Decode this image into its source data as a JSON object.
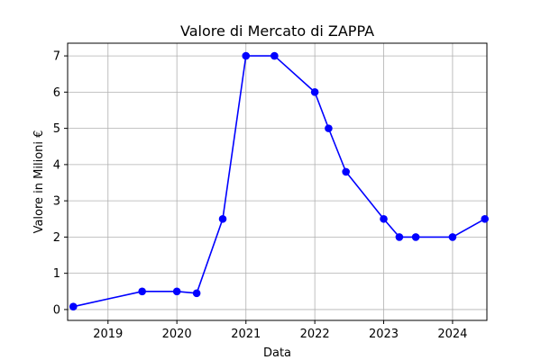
{
  "chart_data": {
    "type": "line",
    "title": "Valore di Mercato di ZAPPA",
    "xlabel": "Data",
    "ylabel": "Valore in Milioni €",
    "x_ticks": [
      "2019",
      "2020",
      "2021",
      "2022",
      "2023",
      "2024"
    ],
    "y_ticks": [
      "0",
      "1",
      "2",
      "3",
      "4",
      "5",
      "6",
      "7"
    ],
    "xlim": [
      "2018-06-01",
      "2024-07-01"
    ],
    "ylim": [
      -0.3,
      7.35
    ],
    "grid": true,
    "series": [
      {
        "color": "#0000ff",
        "marker": "circle",
        "x": [
          "2018-07-01",
          "2019-07-01",
          "2020-01-01",
          "2020-04-15",
          "2020-08-31",
          "2021-01-01",
          "2021-06-01",
          "2022-01-01",
          "2022-03-15",
          "2022-06-15",
          "2023-01-01",
          "2023-03-25",
          "2023-06-20",
          "2024-01-01",
          "2024-06-20"
        ],
        "values": [
          0.08,
          0.5,
          0.5,
          0.45,
          2.5,
          7,
          7,
          6,
          5,
          3.8,
          2.5,
          2,
          2,
          2,
          2.5
        ]
      }
    ]
  }
}
